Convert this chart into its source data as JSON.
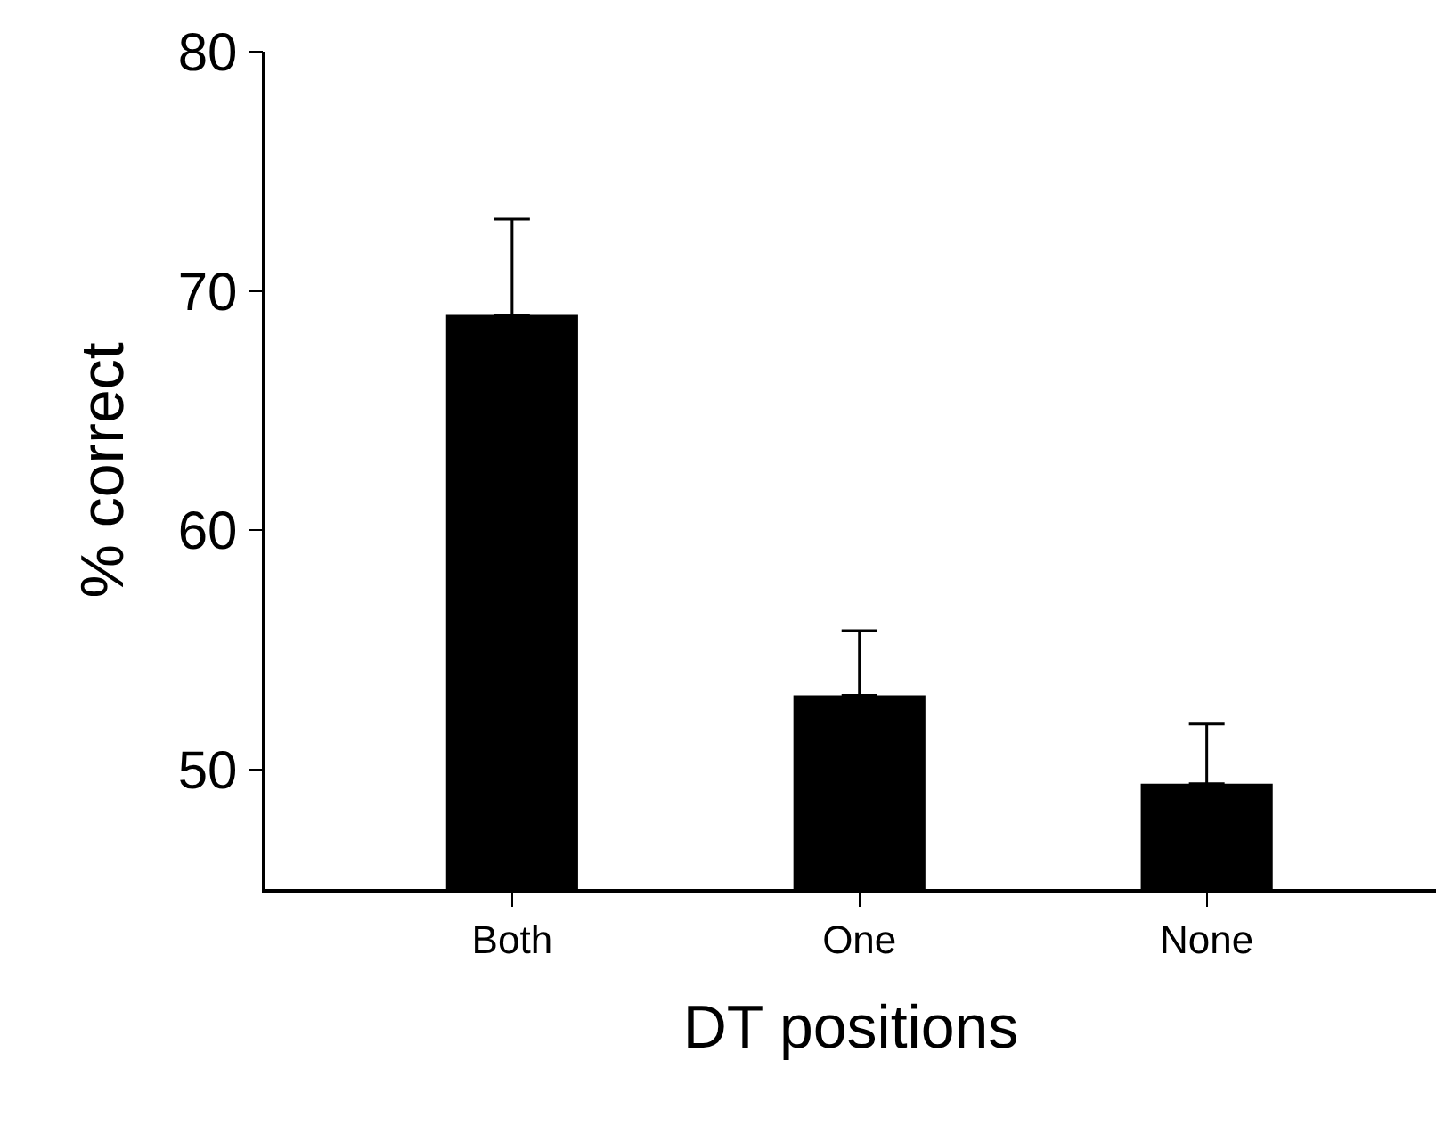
{
  "chart_data": {
    "type": "bar",
    "xlabel": "DT positions",
    "ylabel": "% correct",
    "categories": [
      "Both",
      "One",
      "None"
    ],
    "values": [
      69.0,
      53.1,
      49.4
    ],
    "errors": [
      [
        69.0,
        73.0
      ],
      [
        53.1,
        55.8
      ],
      [
        49.4,
        51.9
      ]
    ],
    "color": "#000000",
    "ylim": [
      45,
      80
    ],
    "yticks": [
      50,
      60,
      70,
      80
    ]
  }
}
